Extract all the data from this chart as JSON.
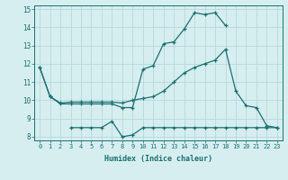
{
  "title": "",
  "xlabel": "Humidex (Indice chaleur)",
  "bg_color": "#d6eef0",
  "grid_color": "#b8d8dc",
  "line_color": "#1a7070",
  "xlim": [
    -0.5,
    23.5
  ],
  "ylim": [
    7.8,
    15.2
  ],
  "yticks": [
    8,
    9,
    10,
    11,
    12,
    13,
    14,
    15
  ],
  "xticks": [
    0,
    1,
    2,
    3,
    4,
    5,
    6,
    7,
    8,
    9,
    10,
    11,
    12,
    13,
    14,
    15,
    16,
    17,
    18,
    19,
    20,
    21,
    22,
    23
  ],
  "line1_x": [
    0,
    1,
    2,
    3,
    4,
    5,
    6,
    7,
    8,
    9,
    10,
    11,
    12,
    13,
    14,
    15,
    16,
    17,
    18
  ],
  "line1_y": [
    11.8,
    10.2,
    9.8,
    9.8,
    9.8,
    9.8,
    9.8,
    9.8,
    9.6,
    9.6,
    11.7,
    11.9,
    13.1,
    13.2,
    13.9,
    14.8,
    14.7,
    14.8,
    14.1
  ],
  "line2_x": [
    0,
    1,
    2,
    3,
    4,
    5,
    6,
    7,
    8,
    9,
    10,
    11,
    12,
    13,
    14,
    15,
    16,
    17,
    18,
    19,
    20,
    21,
    22,
    23
  ],
  "line2_y": [
    11.8,
    10.2,
    9.85,
    9.9,
    9.9,
    9.9,
    9.9,
    9.9,
    9.85,
    10.0,
    10.1,
    10.2,
    10.5,
    11.0,
    11.5,
    11.8,
    12.0,
    12.2,
    12.8,
    10.5,
    9.7,
    9.6,
    8.6,
    8.5
  ],
  "line3_x": [
    3,
    4,
    5,
    6,
    7,
    8,
    9,
    10,
    11,
    12,
    13,
    14,
    15,
    16,
    17,
    18,
    19,
    20,
    21,
    22,
    23
  ],
  "line3_y": [
    8.5,
    8.5,
    8.5,
    8.5,
    8.85,
    8.0,
    8.1,
    8.5,
    8.5,
    8.5,
    8.5,
    8.5,
    8.5,
    8.5,
    8.5,
    8.5,
    8.5,
    8.5,
    8.5,
    8.5,
    8.5
  ]
}
